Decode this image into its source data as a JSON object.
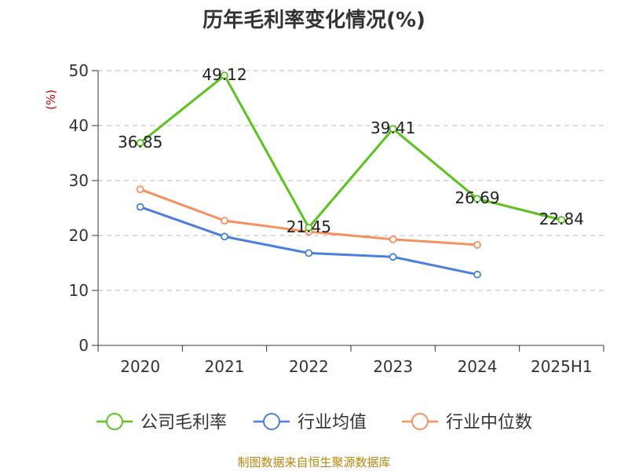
{
  "chart_data": {
    "type": "line",
    "title": "历年毛利率变化情况(%)",
    "ylabel": "(%)",
    "xlabel": "",
    "categories": [
      "2020",
      "2021",
      "2022",
      "2023",
      "2024",
      "2025H1"
    ],
    "ylim": [
      0,
      50
    ],
    "yticks": [
      0,
      10,
      20,
      30,
      40,
      50
    ],
    "grid": true,
    "legend_position": "bottom",
    "series": [
      {
        "name": "公司毛利率",
        "color": "#5cc21f",
        "values": [
          36.85,
          49.12,
          21.45,
          39.41,
          26.69,
          22.84
        ],
        "data_labels": [
          "36.85",
          "49.12",
          "21.45",
          "39.41",
          "26.69",
          "22.84"
        ]
      },
      {
        "name": "行业均值",
        "color": "#4a7fdb",
        "values": [
          25.2,
          19.8,
          16.8,
          16.1,
          12.9,
          null
        ]
      },
      {
        "name": "行业中位数",
        "color": "#f7905e",
        "values": [
          28.4,
          22.7,
          20.7,
          19.3,
          18.3,
          null
        ]
      }
    ]
  },
  "source": "制图数据来自恒生聚源数据库"
}
